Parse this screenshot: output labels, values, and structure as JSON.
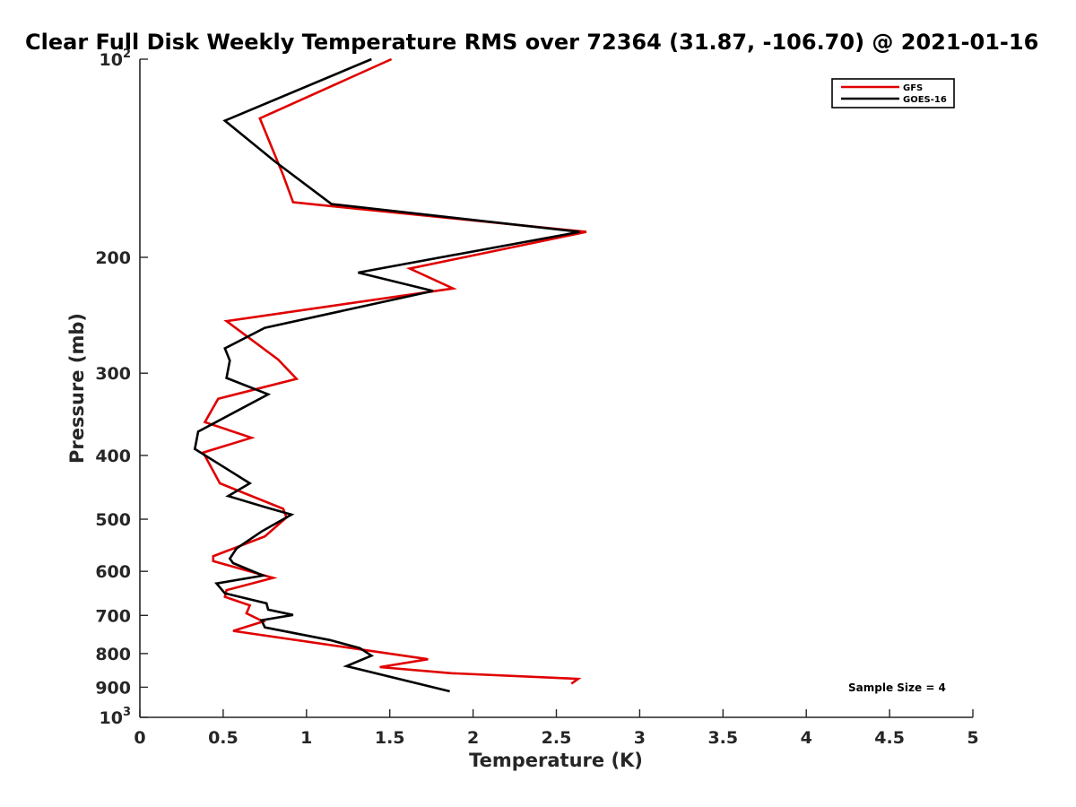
{
  "chart_data": {
    "type": "line",
    "title": "Clear Full Disk Weekly Temperature RMS over 72364 (31.87, -106.70) @ 2021-01-16",
    "xlabel": "Temperature (K)",
    "ylabel": "Pressure (mb)",
    "xlim": [
      0,
      5
    ],
    "ylim": [
      100,
      1000
    ],
    "y_scale": "log",
    "y_reversed": true,
    "grid": false,
    "legend_position": "top-right",
    "x_ticks": [
      "0",
      "0.5",
      "1",
      "1.5",
      "2",
      "2.5",
      "3",
      "3.5",
      "4",
      "4.5",
      "5"
    ],
    "y_ticks": [
      {
        "value": 100,
        "base": "10",
        "exp": "2"
      },
      {
        "value": 200,
        "label": "200"
      },
      {
        "value": 300,
        "label": "300"
      },
      {
        "value": 400,
        "label": "400"
      },
      {
        "value": 500,
        "label": "500"
      },
      {
        "value": 600,
        "label": "600"
      },
      {
        "value": 700,
        "label": "700"
      },
      {
        "value": 800,
        "label": "800"
      },
      {
        "value": 900,
        "label": "900"
      },
      {
        "value": 1000,
        "base": "10",
        "exp": "3"
      }
    ],
    "series": [
      {
        "name": "GFS",
        "color": "#e00000",
        "x": [
          1.51,
          0.72,
          0.86,
          0.92,
          2.68,
          1.62,
          1.88,
          0.52,
          0.83,
          0.94,
          0.47,
          0.39,
          0.67,
          0.38,
          0.48,
          0.86,
          0.88,
          0.75,
          0.44,
          0.44,
          0.8,
          0.52,
          0.51,
          0.66,
          0.64,
          0.74,
          0.56,
          1.73,
          1.44,
          1.87,
          2.63,
          2.59
        ],
        "y": [
          100,
          123,
          150,
          165,
          183,
          208,
          223,
          250,
          286,
          306,
          328,
          356,
          376,
          396,
          441,
          482,
          497,
          531,
          569,
          579,
          614,
          641,
          656,
          676,
          695,
          715,
          739,
          816,
          839,
          857,
          874,
          889
        ]
      },
      {
        "name": "GOES-16",
        "color": "#000000",
        "x": [
          1.39,
          0.51,
          0.81,
          1.15,
          2.64,
          1.31,
          1.76,
          0.75,
          0.51,
          0.54,
          0.52,
          0.77,
          0.35,
          0.33,
          0.66,
          0.53,
          0.76,
          0.91,
          0.73,
          0.58,
          0.54,
          0.56,
          0.74,
          0.46,
          0.51,
          0.76,
          0.77,
          0.92,
          0.73,
          0.75,
          1.14,
          1.32,
          1.39,
          1.24,
          1.86
        ],
        "y": [
          100,
          124,
          143,
          166,
          183,
          211,
          225,
          256,
          275,
          287,
          305,
          323,
          368,
          391,
          441,
          461,
          480,
          492,
          522,
          554,
          574,
          583,
          609,
          626,
          648,
          671,
          686,
          699,
          712,
          730,
          763,
          785,
          806,
          836,
          913
        ]
      }
    ],
    "annotations": [
      "Sample Size = 4"
    ]
  }
}
